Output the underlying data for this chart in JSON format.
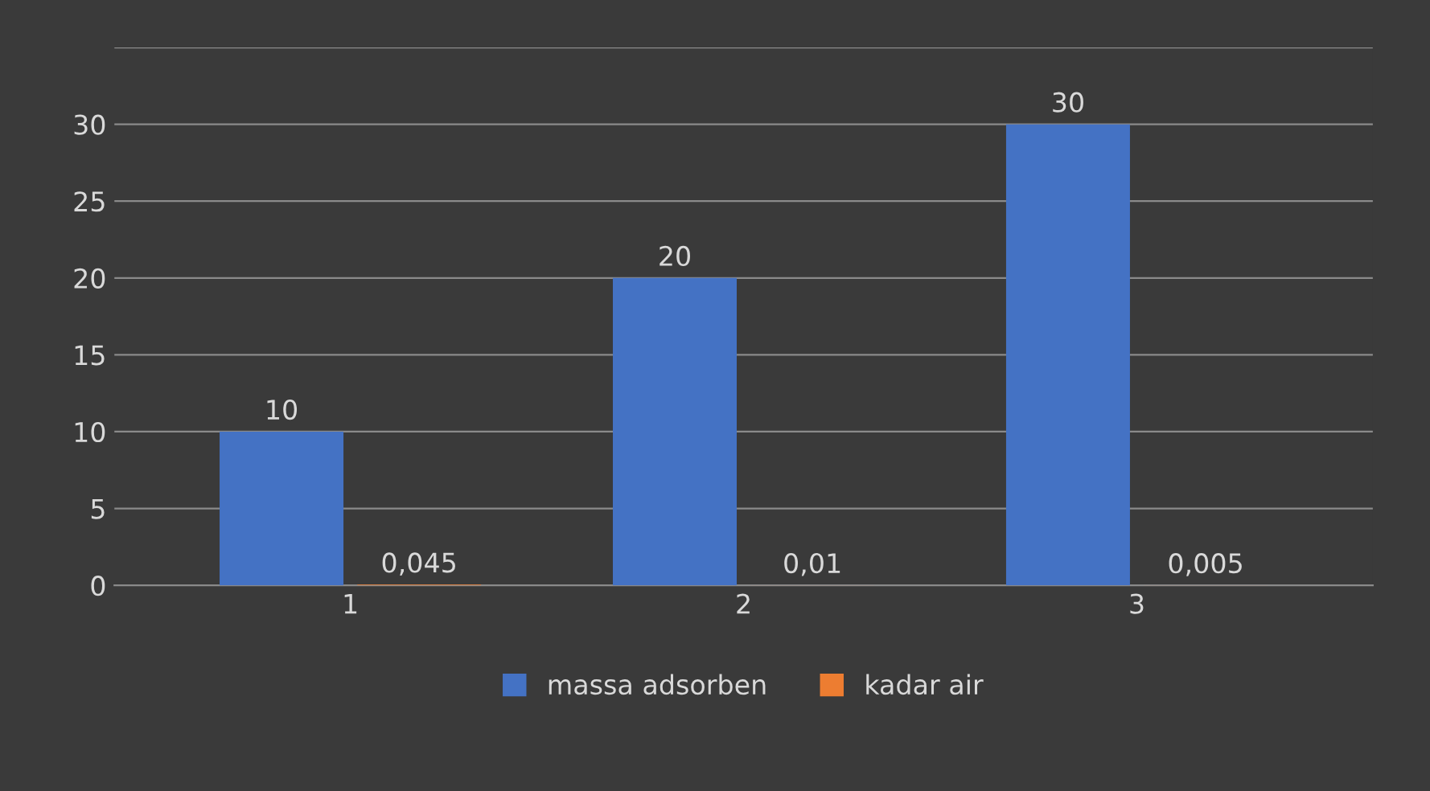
{
  "chart_data": {
    "type": "bar",
    "categories": [
      "1",
      "2",
      "3"
    ],
    "series": [
      {
        "name": "massa adsorben",
        "color": "#4472c4",
        "values": [
          10,
          20,
          30
        ],
        "value_labels": [
          "10",
          "20",
          "30"
        ]
      },
      {
        "name": "kadar air",
        "color": "#ed7d31",
        "values": [
          0.045,
          0.01,
          0.005
        ],
        "value_labels": [
          "0,045",
          "0,01",
          "0,005"
        ]
      }
    ],
    "ylim": [
      0,
      35
    ],
    "yticks": [
      0,
      5,
      10,
      15,
      20,
      25,
      30,
      {
        "value": 35,
        "label": null
      }
    ],
    "grid": "y",
    "legend": "bottom"
  }
}
